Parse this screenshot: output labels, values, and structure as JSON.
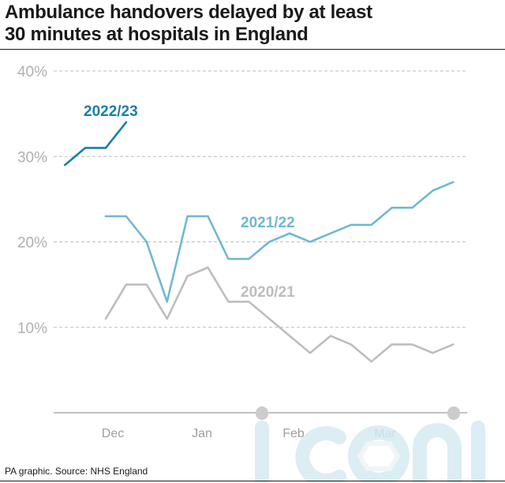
{
  "title_lines": [
    "Ambulance handovers delayed by at least",
    "30 minutes at hospitals in England"
  ],
  "source": "PA graphic. Source: NHS England",
  "watermark": "iconic",
  "chart_data": {
    "type": "line",
    "title": "Ambulance handovers delayed by at least 30 minutes at hospitals in England",
    "ylim": [
      0,
      40
    ],
    "yticks": [
      10,
      20,
      30,
      40
    ],
    "ytick_labels": [
      "10%",
      "20%",
      "30%",
      "40%"
    ],
    "x_tick_labels": [
      "Dec",
      "Jan",
      "Feb",
      "Mar"
    ],
    "grid": true,
    "colors": {
      "2022/23": "#1a7fa8",
      "2021/22": "#6fb8d4",
      "2020/21": "#bdbdbd"
    },
    "series": [
      {
        "name": "2022/23",
        "label": "2022/23",
        "values": [
          29,
          31,
          31,
          34
        ]
      },
      {
        "name": "2021/22",
        "label": "2021/22",
        "values": [
          23,
          23,
          20,
          13,
          23,
          23,
          18,
          18,
          20,
          21,
          20,
          21,
          22,
          22,
          24,
          24,
          26,
          27
        ]
      },
      {
        "name": "2020/21",
        "label": "2020/21",
        "values": [
          11,
          15,
          15,
          11,
          16,
          17,
          13,
          13,
          11,
          9,
          7,
          9,
          8,
          6,
          8,
          8,
          7,
          8
        ]
      }
    ]
  }
}
